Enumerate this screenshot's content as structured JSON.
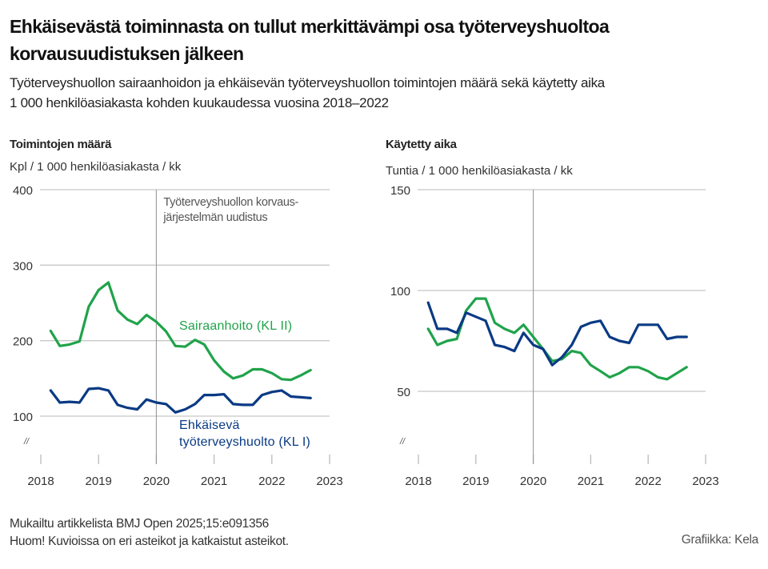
{
  "title_lines": [
    "Ehkäisevästä toiminnasta on tullut merkittävämpi osa työterveyshuoltoa",
    "korvausuudistuksen jälkeen"
  ],
  "subtitle_lines": [
    "Työterveyshuollon sairaanhoidon ja ehkäisevän työterveyshuollon toimintojen määrä sekä käytetty aika",
    "1 000 henkilöasiakasta kohden kuukaudessa vuosina 2018–2022"
  ],
  "footer": {
    "source": "Mukailtu artikkelista BMJ Open 2025;15:e091356",
    "note": "Huom! Kuvioissa on eri asteikot ja katkaistut asteikot.",
    "credit": "Grafiikka: Kela"
  },
  "colors": {
    "sairaanhoito": "#1fa34a",
    "ehkaiseva": "#0a3a84",
    "grid": "#c8c8c8",
    "reform_line": "#999999"
  },
  "chart_data": [
    {
      "type": "line",
      "title": "Toimintojen määrä",
      "ylabel": "Kpl / 1 000 henkilöasiakasta / kk",
      "xlabel": "",
      "xlim": [
        2018,
        2023
      ],
      "ylim": [
        100,
        400
      ],
      "yticks": [
        100,
        200,
        300,
        400
      ],
      "xticks": [
        2018,
        2019,
        2020,
        2021,
        2022,
        2023
      ],
      "axis_break": true,
      "grid": true,
      "annotation": {
        "x": 2020,
        "lines": [
          "Työterveyshuollon korvaus-",
          "järjestelmän uudistus"
        ]
      },
      "x": [
        2018.17,
        2018.33,
        2018.5,
        2018.67,
        2018.83,
        2019.0,
        2019.17,
        2019.33,
        2019.5,
        2019.67,
        2019.83,
        2020.0,
        2020.17,
        2020.33,
        2020.5,
        2020.67,
        2020.83,
        2021.0,
        2021.17,
        2021.33,
        2021.5,
        2021.67,
        2021.83,
        2022.0,
        2022.17,
        2022.33,
        2022.5,
        2022.67
      ],
      "series": [
        {
          "name": "Sairaanhoito (KL II)",
          "label_lines": [
            "Sairaanhoito (KL II)"
          ],
          "color": "#1fa34a",
          "values": [
            213,
            193,
            195,
            199,
            245,
            267,
            277,
            240,
            228,
            222,
            234,
            225,
            212,
            193,
            192,
            201,
            195,
            174,
            159,
            150,
            154,
            162,
            162,
            157,
            149,
            148,
            154,
            161
          ]
        },
        {
          "name": "Ehkäisevä työterveyshuolto (KL I)",
          "label_lines": [
            "Ehkäisevä",
            "työterveyshuolto (KL I)"
          ],
          "color": "#0a3a84",
          "values": [
            134,
            118,
            119,
            118,
            136,
            137,
            134,
            115,
            111,
            109,
            122,
            118,
            116,
            105,
            109,
            116,
            128,
            128,
            129,
            116,
            115,
            115,
            128,
            132,
            134,
            126,
            125,
            124
          ]
        }
      ]
    },
    {
      "type": "line",
      "title": "Käytetty aika",
      "ylabel": "Tuntia / 1 000 henkilöasiakasta / kk",
      "xlabel": "",
      "xlim": [
        2018,
        2023
      ],
      "ylim": [
        50,
        150
      ],
      "yticks": [
        50,
        100,
        150
      ],
      "xticks": [
        2018,
        2019,
        2020,
        2021,
        2022,
        2023
      ],
      "axis_break": true,
      "grid": true,
      "annotation": {
        "x": 2020,
        "lines": []
      },
      "x": [
        2018.17,
        2018.33,
        2018.5,
        2018.67,
        2018.83,
        2019.0,
        2019.17,
        2019.33,
        2019.5,
        2019.67,
        2019.83,
        2020.0,
        2020.17,
        2020.33,
        2020.5,
        2020.67,
        2020.83,
        2021.0,
        2021.17,
        2021.33,
        2021.5,
        2021.67,
        2021.83,
        2022.0,
        2022.17,
        2022.33,
        2022.5,
        2022.67
      ],
      "series": [
        {
          "name": "Sairaanhoito (KL II)",
          "color": "#1fa34a",
          "values": [
            81,
            73,
            75,
            76,
            90,
            96,
            96,
            84,
            81,
            79,
            83,
            77,
            71,
            65,
            66,
            70,
            69,
            63,
            60,
            57,
            59,
            62,
            62,
            60,
            57,
            56,
            59,
            62
          ]
        },
        {
          "name": "Ehkäisevä työterveyshuolto (KL I)",
          "color": "#0a3a84",
          "values": [
            94,
            81,
            81,
            79,
            89,
            87,
            85,
            73,
            72,
            70,
            79,
            73,
            71,
            63,
            67,
            73,
            82,
            84,
            85,
            77,
            75,
            74,
            83,
            83,
            83,
            76,
            77,
            77
          ]
        }
      ]
    }
  ]
}
